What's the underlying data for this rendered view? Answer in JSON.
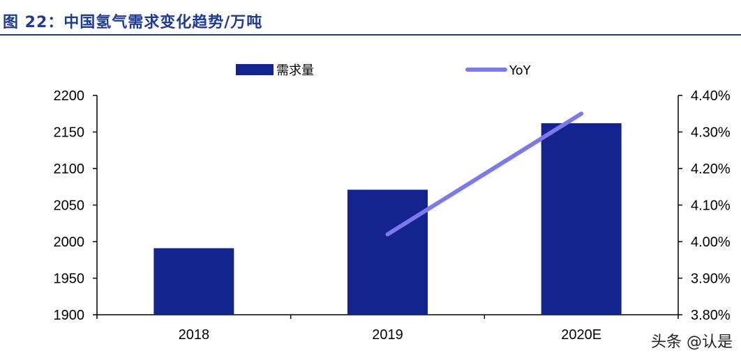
{
  "title": "图 22：中国氢气需求变化趋势/万吨",
  "watermark": "头条 @认是",
  "colors": {
    "bar": "#13248f",
    "line": "#7b78f0",
    "title": "#1f3a93"
  },
  "chart_data": {
    "type": "bar",
    "title": "中国氢气需求变化趋势/万吨",
    "categories": [
      "2018",
      "2019",
      "2020E"
    ],
    "series": [
      {
        "name": "需求量",
        "type": "bar",
        "axis": "left",
        "values": [
          1991,
          2071,
          2162
        ]
      },
      {
        "name": "YoY",
        "type": "line",
        "axis": "right",
        "values": [
          null,
          4.02,
          4.35
        ]
      }
    ],
    "y_left": {
      "min": 1900,
      "max": 2200,
      "ticks": [
        "1900",
        "1950",
        "2000",
        "2050",
        "2100",
        "2150",
        "2200"
      ]
    },
    "y_right": {
      "min": 3.8,
      "max": 4.4,
      "ticks": [
        "3.80%",
        "3.90%",
        "4.00%",
        "4.10%",
        "4.20%",
        "4.30%",
        "4.40%"
      ]
    },
    "grid": false,
    "legend": "top"
  }
}
